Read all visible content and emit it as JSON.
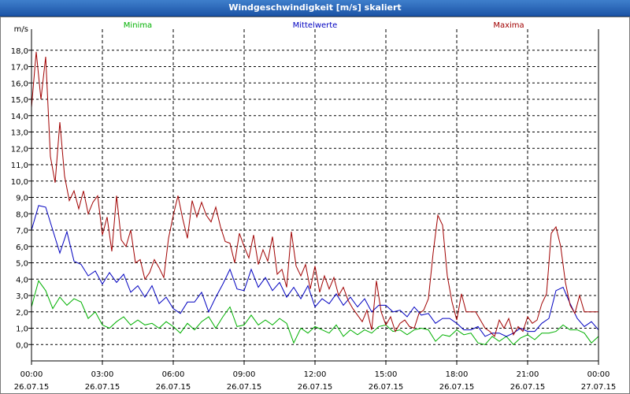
{
  "window": {
    "title": "Windgeschwindigkeit [m/s] skaliert"
  },
  "colors": {
    "minima": "#00b000",
    "mean": "#0000c0",
    "maxima": "#a00000"
  },
  "chart_data": {
    "type": "line",
    "title": "Windgeschwindigkeit [m/s] skaliert",
    "ylabel": "m/s",
    "xlabel": "",
    "ylim": [
      -1.0,
      19.0
    ],
    "xlim": [
      0,
      24
    ],
    "grid": true,
    "y_ticks": [
      0.0,
      1.0,
      2.0,
      3.0,
      4.0,
      5.0,
      6.0,
      7.0,
      8.0,
      9.0,
      10.0,
      11.0,
      12.0,
      13.0,
      14.0,
      15.0,
      16.0,
      17.0,
      18.0
    ],
    "y_tick_labels": [
      "0,0",
      "1,0",
      "2,0",
      "3,0",
      "4,0",
      "5,0",
      "6,0",
      "7,0",
      "8,0",
      "9,0",
      "10,0",
      "11,0",
      "12,0",
      "13,0",
      "14,0",
      "15,0",
      "16,0",
      "17,0",
      "18,0"
    ],
    "x_ticks": [
      {
        "time": "00:00",
        "date": "26.07.15"
      },
      {
        "time": "03:00",
        "date": "26.07.15"
      },
      {
        "time": "06:00",
        "date": "26.07.15"
      },
      {
        "time": "09:00",
        "date": "26.07.15"
      },
      {
        "time": "12:00",
        "date": "26.07.15"
      },
      {
        "time": "15:00",
        "date": "26.07.15"
      },
      {
        "time": "18:00",
        "date": "26.07.15"
      },
      {
        "time": "21:00",
        "date": "26.07.15"
      },
      {
        "time": "00:00",
        "date": "27.07.15"
      }
    ],
    "series": [
      {
        "name": "Minima",
        "color": "#00b000",
        "x": [
          0,
          0.3,
          0.6,
          0.9,
          1.2,
          1.5,
          1.8,
          2.1,
          2.4,
          2.7,
          3.0,
          3.3,
          3.6,
          3.9,
          4.2,
          4.5,
          4.8,
          5.1,
          5.4,
          5.7,
          6.0,
          6.3,
          6.6,
          6.9,
          7.2,
          7.5,
          7.8,
          8.1,
          8.4,
          8.7,
          9.0,
          9.3,
          9.6,
          9.9,
          10.2,
          10.5,
          10.8,
          11.1,
          11.4,
          11.7,
          12.0,
          12.3,
          12.6,
          12.9,
          13.2,
          13.5,
          13.8,
          14.1,
          14.4,
          14.7,
          15.0,
          15.3,
          15.6,
          15.9,
          16.2,
          16.5,
          16.8,
          17.1,
          17.4,
          17.7,
          18.0,
          18.3,
          18.6,
          18.9,
          19.2,
          19.5,
          19.8,
          20.1,
          20.4,
          20.7,
          21.0,
          21.3,
          21.6,
          21.9,
          22.2,
          22.5,
          22.8,
          23.1,
          23.4,
          23.7,
          24.0
        ],
        "values": [
          2.3,
          3.9,
          3.3,
          2.2,
          2.9,
          2.4,
          2.8,
          2.6,
          1.6,
          2.0,
          1.2,
          1.0,
          1.4,
          1.7,
          1.2,
          1.5,
          1.2,
          1.3,
          1.0,
          1.4,
          1.1,
          0.7,
          1.3,
          0.9,
          1.4,
          1.7,
          1.0,
          1.7,
          2.3,
          1.1,
          1.2,
          1.8,
          1.2,
          1.5,
          1.2,
          1.6,
          1.3,
          0.1,
          1.0,
          0.7,
          1.1,
          0.9,
          0.7,
          1.2,
          0.5,
          0.9,
          0.6,
          0.9,
          0.7,
          1.1,
          1.2,
          0.8,
          0.9,
          0.6,
          0.9,
          1.0,
          0.9,
          0.2,
          0.6,
          0.5,
          0.9,
          0.6,
          0.7,
          0.1,
          0.0,
          0.5,
          0.2,
          0.5,
          0.0,
          0.4,
          0.6,
          0.3,
          0.7,
          0.7,
          0.8,
          1.2,
          0.9,
          0.9,
          0.7,
          0.1,
          0.5
        ]
      },
      {
        "name": "Mittelwerte",
        "color": "#0000c0",
        "x": [
          0,
          0.3,
          0.6,
          0.9,
          1.2,
          1.5,
          1.8,
          2.1,
          2.4,
          2.7,
          3.0,
          3.3,
          3.6,
          3.9,
          4.2,
          4.5,
          4.8,
          5.1,
          5.4,
          5.7,
          6.0,
          6.3,
          6.6,
          6.9,
          7.2,
          7.5,
          7.8,
          8.1,
          8.4,
          8.7,
          9.0,
          9.3,
          9.6,
          9.9,
          10.2,
          10.5,
          10.8,
          11.1,
          11.4,
          11.7,
          12.0,
          12.3,
          12.6,
          12.9,
          13.2,
          13.5,
          13.8,
          14.1,
          14.4,
          14.7,
          15.0,
          15.3,
          15.6,
          15.9,
          16.2,
          16.5,
          16.8,
          17.1,
          17.4,
          17.7,
          18.0,
          18.3,
          18.6,
          18.9,
          19.2,
          19.5,
          19.8,
          20.1,
          20.4,
          20.7,
          21.0,
          21.3,
          21.6,
          21.9,
          22.2,
          22.5,
          22.8,
          23.1,
          23.4,
          23.7,
          24.0
        ],
        "values": [
          7.0,
          8.5,
          8.4,
          7.0,
          5.6,
          6.9,
          5.1,
          4.9,
          4.2,
          4.5,
          3.7,
          4.4,
          3.8,
          4.3,
          3.2,
          3.6,
          2.9,
          3.6,
          2.5,
          2.9,
          2.2,
          1.9,
          2.6,
          2.6,
          3.2,
          2.0,
          2.9,
          3.7,
          4.6,
          3.4,
          3.3,
          4.6,
          3.5,
          4.1,
          3.3,
          3.8,
          2.9,
          3.5,
          2.8,
          3.6,
          2.3,
          2.8,
          2.5,
          3.1,
          2.4,
          2.9,
          2.3,
          2.8,
          2.0,
          2.4,
          2.4,
          2.0,
          2.1,
          1.7,
          2.3,
          1.8,
          1.9,
          1.3,
          1.6,
          1.6,
          1.3,
          0.9,
          0.9,
          1.1,
          0.5,
          0.7,
          0.7,
          0.5,
          0.7,
          1.0,
          0.8,
          0.8,
          1.3,
          1.6,
          3.3,
          3.5,
          2.5,
          1.6,
          1.1,
          1.4,
          0.9
        ]
      },
      {
        "name": "Maxima",
        "color": "#a00000",
        "x": [
          0,
          0.2,
          0.4,
          0.6,
          0.8,
          1.0,
          1.2,
          1.4,
          1.6,
          1.8,
          2.0,
          2.2,
          2.4,
          2.6,
          2.8,
          3.0,
          3.2,
          3.4,
          3.6,
          3.8,
          4.0,
          4.2,
          4.4,
          4.6,
          4.8,
          5.0,
          5.2,
          5.4,
          5.6,
          5.8,
          6.0,
          6.2,
          6.4,
          6.6,
          6.8,
          7.0,
          7.2,
          7.4,
          7.6,
          7.8,
          8.0,
          8.2,
          8.4,
          8.6,
          8.8,
          9.0,
          9.2,
          9.4,
          9.6,
          9.8,
          10.0,
          10.2,
          10.4,
          10.6,
          10.8,
          11.0,
          11.2,
          11.4,
          11.6,
          11.8,
          12.0,
          12.2,
          12.4,
          12.6,
          12.8,
          13.0,
          13.2,
          13.4,
          13.6,
          13.8,
          14.0,
          14.2,
          14.4,
          14.6,
          14.8,
          15.0,
          15.2,
          15.4,
          15.6,
          15.8,
          16.0,
          16.2,
          16.4,
          16.6,
          16.8,
          17.0,
          17.2,
          17.4,
          17.6,
          17.8,
          18.0,
          18.2,
          18.4,
          18.6,
          18.8,
          19.0,
          19.2,
          19.4,
          19.6,
          19.8,
          20.0,
          20.2,
          20.4,
          20.6,
          20.8,
          21.0,
          21.2,
          21.4,
          21.6,
          21.8,
          22.0,
          22.2,
          22.4,
          22.6,
          22.8,
          23.0,
          23.2,
          23.4,
          23.6,
          23.8,
          24.0
        ],
        "values": [
          14.5,
          17.9,
          15.0,
          17.6,
          11.5,
          9.9,
          13.6,
          10.3,
          8.8,
          9.4,
          8.3,
          9.4,
          8.0,
          8.7,
          9.1,
          6.7,
          7.8,
          5.7,
          9.1,
          6.4,
          6.0,
          7.0,
          5.0,
          5.2,
          4.0,
          4.4,
          5.2,
          4.7,
          4.1,
          6.5,
          7.9,
          9.1,
          7.7,
          6.5,
          8.8,
          7.8,
          8.7,
          7.9,
          7.5,
          8.4,
          7.2,
          6.3,
          6.2,
          5.0,
          6.8,
          6.0,
          5.3,
          6.7,
          4.9,
          5.8,
          5.1,
          6.6,
          4.3,
          4.6,
          3.5,
          6.9,
          4.8,
          4.2,
          4.9,
          3.4,
          4.8,
          3.2,
          4.2,
          3.4,
          4.1,
          3.0,
          3.5,
          2.7,
          2.2,
          1.8,
          1.4,
          2.1,
          0.9,
          3.9,
          2.0,
          1.2,
          1.7,
          0.8,
          1.3,
          1.5,
          1.1,
          1.0,
          1.9,
          2.1,
          2.8,
          5.6,
          7.9,
          7.3,
          4.2,
          2.6,
          1.5,
          3.1,
          2.0,
          2.0,
          2.0,
          1.5,
          1.0,
          0.8,
          0.5,
          1.5,
          1.0,
          1.6,
          0.6,
          1.1,
          0.8,
          1.7,
          1.3,
          1.5,
          2.5,
          3.1,
          6.8,
          7.2,
          6.0,
          3.8,
          2.4,
          1.9,
          3.0,
          2.0,
          2.0,
          2.0,
          2.0
        ]
      }
    ]
  }
}
